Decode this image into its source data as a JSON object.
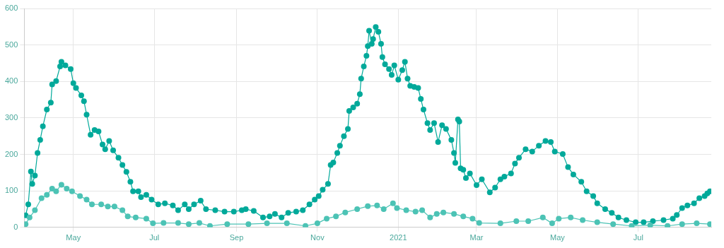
{
  "chart_data": {
    "type": "line",
    "marker": "circle",
    "grid": true,
    "legend": false,
    "xlim": [
      "2020-03-25",
      "2021-08-25"
    ],
    "xticks": [
      {
        "value": "2020-05-01",
        "label": "May"
      },
      {
        "value": "2020-07-01",
        "label": "Jul"
      },
      {
        "value": "2020-09-01",
        "label": "Sep"
      },
      {
        "value": "2020-11-01",
        "label": "Nov"
      },
      {
        "value": "2021-01-01",
        "label": "2021"
      },
      {
        "value": "2021-03-01",
        "label": "Mar"
      },
      {
        "value": "2021-05-01",
        "label": "May"
      },
      {
        "value": "2021-07-01",
        "label": "Jul"
      }
    ],
    "ylim": [
      0,
      600
    ],
    "yticks": [
      0,
      100,
      200,
      300,
      400,
      500,
      600
    ],
    "series": [
      {
        "color": "#00a99a",
        "x": [
          "2020-03-26",
          "2020-03-28",
          "2020-03-30",
          "2020-03-31",
          "2020-04-02",
          "2020-04-04",
          "2020-04-06",
          "2020-04-08",
          "2020-04-11",
          "2020-04-14",
          "2020-04-15",
          "2020-04-18",
          "2020-04-21",
          "2020-04-22",
          "2020-04-25",
          "2020-04-29",
          "2020-05-01",
          "2020-05-03",
          "2020-05-07",
          "2020-05-09",
          "2020-05-11",
          "2020-05-14",
          "2020-05-17",
          "2020-05-20",
          "2020-05-23",
          "2020-05-25",
          "2020-05-28",
          "2020-05-31",
          "2020-06-04",
          "2020-06-07",
          "2020-06-10",
          "2020-06-13",
          "2020-06-15",
          "2020-06-19",
          "2020-06-21",
          "2020-06-25",
          "2020-06-29",
          "2020-07-04",
          "2020-07-09",
          "2020-07-15",
          "2020-07-19",
          "2020-07-24",
          "2020-07-27",
          "2020-07-31",
          "2020-08-05",
          "2020-08-09",
          "2020-08-16",
          "2020-08-23",
          "2020-08-30",
          "2020-09-05",
          "2020-09-08",
          "2020-09-14",
          "2020-09-21",
          "2020-09-26",
          "2020-09-30",
          "2020-10-05",
          "2020-10-10",
          "2020-10-16",
          "2020-10-21",
          "2020-10-26",
          "2020-10-30",
          "2020-11-02",
          "2020-11-05",
          "2020-11-09",
          "2020-11-11",
          "2020-11-13",
          "2020-11-16",
          "2020-11-18",
          "2020-11-21",
          "2020-11-24",
          "2020-11-25",
          "2020-11-28",
          "2020-12-01",
          "2020-12-03",
          "2020-12-04",
          "2020-12-06",
          "2020-12-08",
          "2020-12-09",
          "2020-12-10",
          "2020-12-12",
          "2020-12-13",
          "2020-12-15",
          "2020-12-17",
          "2020-12-19",
          "2020-12-20",
          "2020-12-22",
          "2020-12-25",
          "2020-12-27",
          "2020-12-29",
          "2021-01-01",
          "2021-01-04",
          "2021-01-06",
          "2021-01-08",
          "2021-01-10",
          "2021-01-13",
          "2021-01-16",
          "2021-01-18",
          "2021-01-20",
          "2021-01-23",
          "2021-01-25",
          "2021-01-28",
          "2021-01-31",
          "2021-02-03",
          "2021-02-06",
          "2021-02-10",
          "2021-02-12",
          "2021-02-13",
          "2021-02-15",
          "2021-02-16",
          "2021-02-17",
          "2021-02-19",
          "2021-02-21",
          "2021-02-24",
          "2021-03-01",
          "2021-03-05",
          "2021-03-11",
          "2021-03-15",
          "2021-03-19",
          "2021-03-22",
          "2021-03-27",
          "2021-03-30",
          "2021-04-02",
          "2021-04-07",
          "2021-04-12",
          "2021-04-17",
          "2021-04-22",
          "2021-04-26",
          "2021-04-29",
          "2021-05-05",
          "2021-05-09",
          "2021-05-13",
          "2021-05-19",
          "2021-05-23",
          "2021-05-28",
          "2021-05-31",
          "2021-06-06",
          "2021-06-11",
          "2021-06-16",
          "2021-06-22",
          "2021-06-29",
          "2021-07-05",
          "2021-07-12",
          "2021-07-20",
          "2021-07-27",
          "2021-07-30",
          "2021-08-03",
          "2021-08-07",
          "2021-08-12",
          "2021-08-16",
          "2021-08-20",
          "2021-08-22",
          "2021-08-24"
        ],
        "values": [
          33,
          63,
          153,
          119,
          142,
          204,
          240,
          277,
          323,
          342,
          392,
          401,
          441,
          454,
          444,
          434,
          395,
          382,
          362,
          346,
          309,
          254,
          267,
          263,
          227,
          214,
          237,
          211,
          191,
          171,
          152,
          125,
          99,
          99,
          83,
          89,
          76,
          63,
          66,
          60,
          47,
          63,
          50,
          63,
          73,
          50,
          47,
          43,
          43,
          47,
          50,
          45,
          27,
          30,
          37,
          27,
          40,
          43,
          47,
          63,
          76,
          86,
          103,
          119,
          171,
          178,
          204,
          224,
          250,
          270,
          319,
          329,
          339,
          365,
          408,
          441,
          470,
          497,
          539,
          503,
          516,
          549,
          536,
          503,
          467,
          447,
          434,
          418,
          444,
          405,
          431,
          454,
          408,
          388,
          385,
          382,
          352,
          323,
          286,
          267,
          286,
          234,
          280,
          270,
          240,
          204,
          177,
          296,
          290,
          162,
          158,
          135,
          148,
          116,
          132,
          96,
          109,
          132,
          139,
          148,
          175,
          191,
          214,
          208,
          224,
          237,
          234,
          208,
          201,
          165,
          145,
          125,
          99,
          86,
          66,
          50,
          40,
          27,
          20,
          14,
          14,
          17,
          20,
          24,
          34,
          53,
          60,
          66,
          80,
          86,
          93,
          99
        ]
      },
      {
        "color": "#4cc3b5",
        "x": [
          "2020-03-26",
          "2020-03-29",
          "2020-04-02",
          "2020-04-07",
          "2020-04-11",
          "2020-04-15",
          "2020-04-18",
          "2020-04-22",
          "2020-04-26",
          "2020-04-30",
          "2020-05-06",
          "2020-05-11",
          "2020-05-15",
          "2020-05-22",
          "2020-05-27",
          "2020-06-01",
          "2020-06-07",
          "2020-06-11",
          "2020-06-17",
          "2020-06-25",
          "2020-06-30",
          "2020-07-08",
          "2020-07-19",
          "2020-07-27",
          "2020-08-04",
          "2020-08-12",
          "2020-08-25",
          "2020-09-10",
          "2020-09-24",
          "2020-10-09",
          "2020-10-23",
          "2020-11-01",
          "2020-11-08",
          "2020-11-15",
          "2020-11-22",
          "2020-12-01",
          "2020-12-09",
          "2020-12-16",
          "2020-12-21",
          "2020-12-28",
          "2020-12-31",
          "2021-01-07",
          "2021-01-14",
          "2021-01-19",
          "2021-01-25",
          "2021-01-30",
          "2021-02-04",
          "2021-02-12",
          "2021-02-19",
          "2021-02-26",
          "2021-03-03",
          "2021-03-19",
          "2021-03-31",
          "2021-04-09",
          "2021-04-20",
          "2021-04-27",
          "2021-05-02",
          "2021-05-11",
          "2021-05-20",
          "2021-05-31",
          "2021-06-12",
          "2021-06-26",
          "2021-07-10",
          "2021-07-23",
          "2021-08-03",
          "2021-08-14",
          "2021-08-24"
        ],
        "values": [
          9,
          27,
          47,
          80,
          89,
          106,
          99,
          117,
          106,
          99,
          86,
          76,
          63,
          63,
          57,
          57,
          47,
          30,
          27,
          24,
          11,
          12,
          12,
          9,
          12,
          4,
          9,
          9,
          11,
          11,
          4,
          11,
          24,
          30,
          41,
          50,
          58,
          60,
          50,
          66,
          53,
          47,
          43,
          47,
          27,
          37,
          41,
          37,
          30,
          24,
          12,
          11,
          17,
          17,
          27,
          11,
          24,
          27,
          20,
          14,
          9,
          4,
          6,
          4,
          9,
          11,
          9
        ]
      }
    ]
  }
}
